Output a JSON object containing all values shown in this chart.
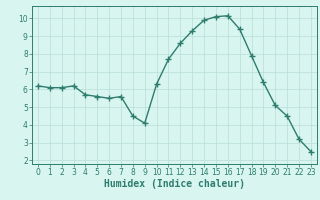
{
  "x": [
    0,
    1,
    2,
    3,
    4,
    5,
    6,
    7,
    8,
    9,
    10,
    11,
    12,
    13,
    14,
    15,
    16,
    17,
    18,
    19,
    20,
    21,
    22,
    23
  ],
  "y": [
    6.2,
    6.1,
    6.1,
    6.2,
    5.7,
    5.6,
    5.5,
    5.6,
    4.5,
    4.1,
    6.3,
    7.7,
    8.6,
    9.3,
    9.9,
    10.1,
    10.15,
    9.4,
    7.9,
    6.4,
    5.1,
    4.5,
    3.2,
    2.5
  ],
  "line_color": "#2e7d6e",
  "marker": "+",
  "marker_size": 4,
  "line_width": 1.0,
  "bg_color": "#d8f5f0",
  "grid_color": "#b8ddd8",
  "xlabel": "Humidex (Indice chaleur)",
  "xlabel_fontsize": 7,
  "xlabel_color": "#2e7d6e",
  "xlim": [
    -0.5,
    23.5
  ],
  "ylim": [
    1.8,
    10.7
  ],
  "yticks": [
    2,
    3,
    4,
    5,
    6,
    7,
    8,
    9,
    10
  ],
  "xticks": [
    0,
    1,
    2,
    3,
    4,
    5,
    6,
    7,
    8,
    9,
    10,
    11,
    12,
    13,
    14,
    15,
    16,
    17,
    18,
    19,
    20,
    21,
    22,
    23
  ],
  "tick_fontsize": 5.5,
  "tick_color": "#2e7d6e",
  "axis_color": "#2e7d6e",
  "spine_color": "#2e7d6e"
}
